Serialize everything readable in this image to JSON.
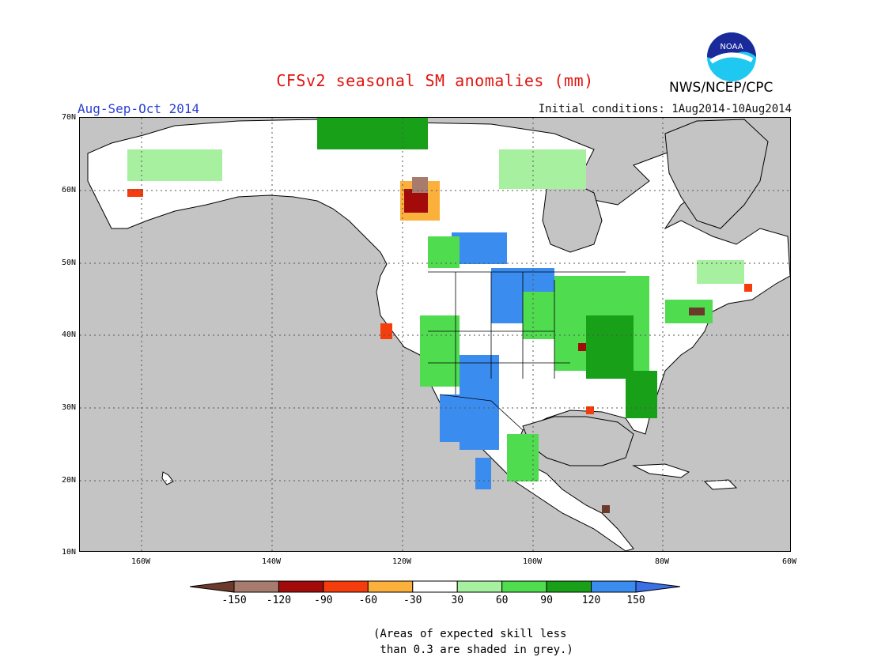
{
  "header": {
    "title": "CFSv2 seasonal SM anomalies (mm)",
    "period": "Aug-Sep-Oct 2014",
    "initial_conditions": "Initial conditions: 1Aug2014-10Aug2014",
    "agency": "NWS/NCEP/CPC",
    "logo_text": "NOAA"
  },
  "map": {
    "region": "North America",
    "lat_labels": [
      "70N",
      "60N",
      "50N",
      "40N",
      "30N",
      "20N",
      "10N"
    ],
    "lon_labels": [
      "160W",
      "140W",
      "120W",
      "100W",
      "80W",
      "60W"
    ],
    "colors": {
      "ocean_no_skill": "#c4c4c4",
      "land_neutral": "#ffffff",
      "grid": "#555555",
      "coast": "#000000"
    }
  },
  "legend": {
    "labels": [
      "-150",
      "-120",
      "-90",
      "-60",
      "-30",
      "30",
      "60",
      "90",
      "120",
      "150"
    ],
    "colors": [
      "#6b3a2a",
      "#a77b6e",
      "#a30b0b",
      "#f43c0c",
      "#fbb03b",
      "#ffffff",
      "#a6f0a0",
      "#4fdc4f",
      "#18a018",
      "#3a8cef",
      "#3a6fe8"
    ]
  },
  "note": "(Areas of expected skill less\n than 0.3 are shaded in grey.)"
}
